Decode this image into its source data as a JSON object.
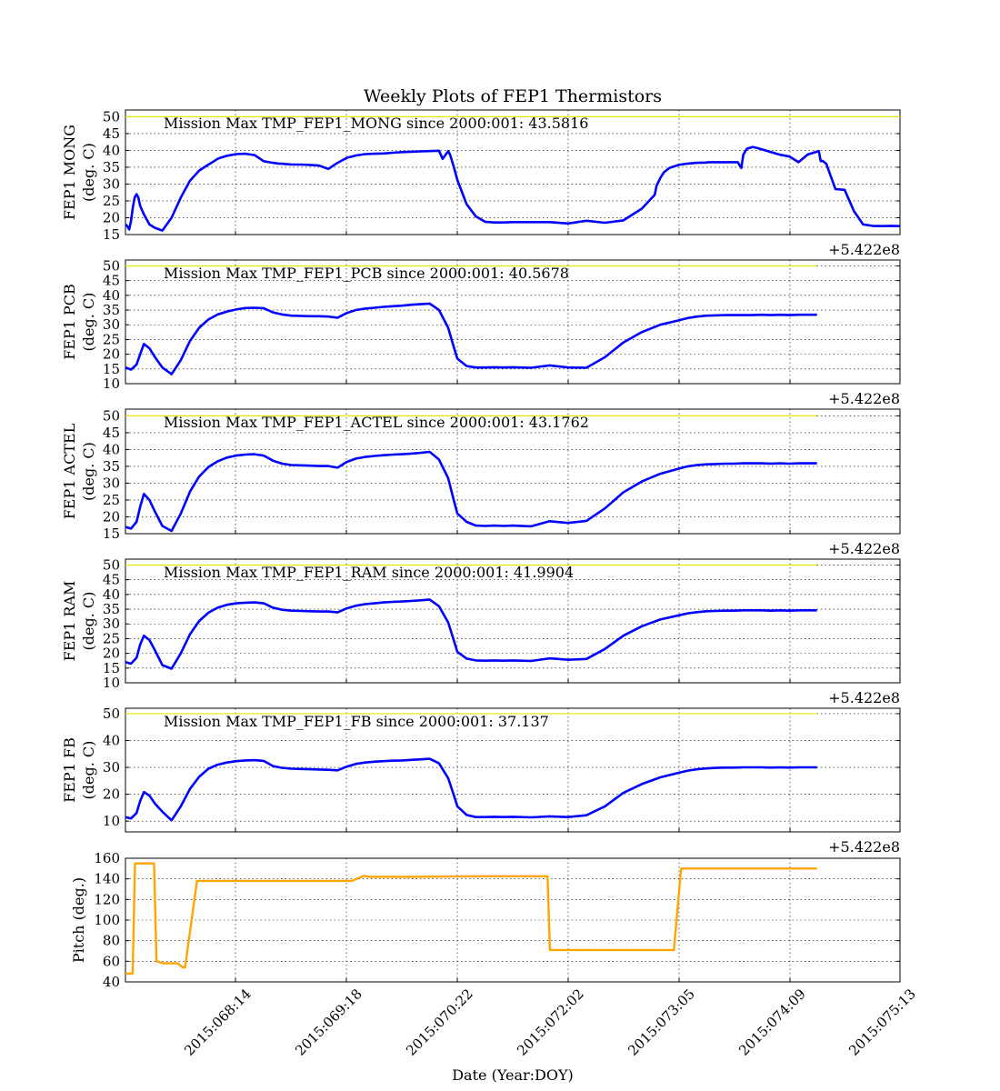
{
  "title": "Weekly Plots of FEP1 Thermistors",
  "xlabel": "Date (Year:DOY)",
  "offset_text": "+5.422e8",
  "colors": {
    "temperature": "#0000ff",
    "pitch": "#ffa500",
    "limit": "#e6e600",
    "axis": "#000000"
  },
  "chart_data": [
    {
      "type": "line",
      "ylabel_lines": [
        "FEP1 MONG",
        "(deg. C)"
      ],
      "annotation": "Mission Max TMP_FEP1_MONG since 2000:001: 43.5816",
      "limit_value": 50,
      "ylim": [
        15,
        52
      ],
      "yticks": [
        15,
        20,
        25,
        30,
        35,
        40,
        45,
        50
      ],
      "x": [
        0,
        1,
        2,
        3,
        4,
        5,
        6,
        7,
        8,
        10,
        13,
        16,
        20,
        25,
        30,
        35,
        40,
        45,
        48,
        50,
        52,
        55,
        60,
        65,
        70,
        75,
        80,
        83,
        86,
        87,
        88,
        90,
        95,
        100,
        105,
        110,
        115,
        120,
        125,
        130,
        135,
        140,
        145,
        150,
        155,
        160,
        165,
        170,
        172,
        175,
        176,
        178,
        180,
        185,
        190,
        195,
        200,
        205,
        210,
        220,
        230,
        240,
        250,
        260,
        270,
        280,
        287,
        288,
        290,
        292,
        295,
        300,
        305,
        310,
        315,
        316,
        317,
        320,
        324,
        325,
        328,
        330,
        332,
        334,
        335,
        337,
        340,
        342,
        345,
        350,
        355,
        360,
        365,
        370,
        376,
        377,
        378,
        380,
        385,
        390,
        395,
        400,
        405,
        410,
        415,
        420
      ],
      "y": [
        18,
        17.5,
        16.5,
        19,
        23,
        26,
        27,
        26,
        23.5,
        21,
        18,
        17,
        16.2,
        20,
        26,
        31,
        34,
        35.8,
        36.8,
        37.5,
        37.9,
        38.4,
        38.9,
        39,
        38.6,
        36.8,
        36.3,
        36.1,
        36.0,
        35.9,
        35.9,
        35.8,
        35.8,
        35.7,
        35.5,
        34.5,
        36.3,
        37.8,
        38.5,
        38.9,
        39,
        39.1,
        39.3,
        39.5,
        39.6,
        39.7,
        39.8,
        39.9,
        37.5,
        39.8,
        38.8,
        35.2,
        31.2,
        24,
        20.4,
        18.8,
        18.6,
        18.6,
        18.7,
        18.7,
        18.7,
        18.3,
        19.1,
        18.5,
        19.2,
        22.7,
        26.8,
        29.5,
        31.8,
        33.5,
        34.8,
        35.7,
        36.1,
        36.3,
        36.4,
        36.5,
        36.5,
        36.5,
        36.5,
        36.5,
        36.5,
        36.5,
        36.5,
        34.8,
        38.7,
        40.5,
        41,
        40.8,
        40.3,
        39.5,
        38.7,
        38.2,
        36.5,
        38.8,
        39.8,
        36.8,
        36.9,
        36,
        28.5,
        28.3,
        22,
        18,
        17.6,
        17.5,
        17.6,
        17.5
      ]
    },
    {
      "type": "line",
      "ylabel_lines": [
        "FEP1 PCB",
        "(deg. C)"
      ],
      "annotation": "Mission Max TMP_FEP1_PCB since 2000:001: 40.5678",
      "limit_value": 50,
      "ylim": [
        10,
        52
      ],
      "yticks": [
        10,
        15,
        20,
        25,
        30,
        35,
        40,
        45,
        50
      ],
      "x": [
        0,
        3,
        6,
        8,
        10,
        13,
        16,
        20,
        25,
        30,
        35,
        40,
        45,
        50,
        55,
        60,
        65,
        70,
        75,
        80,
        85,
        90,
        95,
        100,
        105,
        110,
        115,
        120,
        125,
        130,
        135,
        140,
        145,
        150,
        155,
        160,
        165,
        170,
        175,
        178,
        180,
        185,
        190,
        195,
        200,
        205,
        210,
        220,
        230,
        240,
        250,
        260,
        270,
        280,
        290,
        300,
        305,
        310,
        315,
        320,
        325,
        330,
        335,
        340,
        345,
        350,
        355,
        360,
        365,
        370,
        375
      ],
      "y": [
        15.5,
        14.8,
        16.5,
        20,
        23.5,
        22,
        19,
        15.5,
        13.2,
        18,
        24.5,
        29,
        31.8,
        33.5,
        34.5,
        35.2,
        35.7,
        35.8,
        35.6,
        34.2,
        33.5,
        33.1,
        33,
        32.9,
        32.9,
        32.8,
        32.4,
        34,
        35,
        35.5,
        35.8,
        36.1,
        36.3,
        36.5,
        36.8,
        37,
        37.2,
        35,
        29,
        22.5,
        18.5,
        16,
        15.5,
        15.5,
        15.6,
        15.5,
        15.6,
        15.4,
        16.2,
        15.5,
        15.4,
        19,
        24,
        27.5,
        30,
        31.5,
        32.3,
        32.8,
        33.1,
        33.2,
        33.3,
        33.3,
        33.3,
        33.3,
        33.4,
        33.3,
        33.4,
        33.3,
        33.4,
        33.4,
        33.4
      ]
    },
    {
      "type": "line",
      "ylabel_lines": [
        "FEP1 ACTEL",
        "(deg. C)"
      ],
      "annotation": "Mission Max TMP_FEP1_ACTEL since 2000:001: 43.1762",
      "limit_value": 50,
      "ylim": [
        15,
        52
      ],
      "yticks": [
        15,
        20,
        25,
        30,
        35,
        40,
        45,
        50
      ],
      "x": [
        0,
        3,
        6,
        8,
        10,
        13,
        16,
        20,
        25,
        30,
        35,
        40,
        45,
        50,
        55,
        60,
        65,
        70,
        75,
        80,
        85,
        90,
        95,
        100,
        105,
        110,
        115,
        120,
        125,
        130,
        135,
        140,
        145,
        150,
        155,
        160,
        165,
        170,
        175,
        178,
        180,
        185,
        190,
        195,
        200,
        205,
        210,
        220,
        230,
        240,
        250,
        260,
        270,
        280,
        290,
        300,
        305,
        310,
        315,
        320,
        325,
        330,
        335,
        340,
        345,
        350,
        355,
        360,
        365,
        370,
        375
      ],
      "y": [
        17,
        16.5,
        18.5,
        23,
        26.8,
        25,
        21.5,
        17.3,
        15.8,
        21,
        27.5,
        32,
        34.8,
        36.5,
        37.6,
        38.2,
        38.5,
        38.6,
        38.2,
        36.7,
        35.8,
        35.4,
        35.3,
        35.2,
        35.1,
        35.1,
        34.6,
        36.3,
        37.3,
        37.8,
        38.1,
        38.3,
        38.5,
        38.6,
        38.8,
        39,
        39.3,
        37,
        31.5,
        25,
        21,
        18.5,
        17.4,
        17.3,
        17.4,
        17.3,
        17.4,
        17.2,
        18.7,
        18.2,
        18.8,
        22.5,
        27.3,
        30.5,
        32.8,
        34.3,
        35,
        35.4,
        35.6,
        35.7,
        35.8,
        35.8,
        35.9,
        35.9,
        35.9,
        35.8,
        35.9,
        35.8,
        35.9,
        35.9,
        35.9
      ]
    },
    {
      "type": "line",
      "ylabel_lines": [
        "FEP1 RAM",
        "(deg. C)"
      ],
      "annotation": "Mission Max TMP_FEP1_RAM since 2000:001: 41.9904",
      "limit_value": 50,
      "ylim": [
        10,
        52
      ],
      "yticks": [
        10,
        15,
        20,
        25,
        30,
        35,
        40,
        45,
        50
      ],
      "x": [
        0,
        3,
        6,
        8,
        10,
        13,
        16,
        20,
        25,
        30,
        35,
        40,
        45,
        50,
        55,
        60,
        65,
        70,
        75,
        80,
        85,
        90,
        95,
        100,
        105,
        110,
        115,
        120,
        125,
        130,
        135,
        140,
        145,
        150,
        155,
        160,
        165,
        170,
        175,
        178,
        180,
        185,
        190,
        195,
        200,
        205,
        210,
        220,
        230,
        240,
        250,
        260,
        270,
        280,
        290,
        300,
        305,
        310,
        315,
        320,
        325,
        330,
        335,
        340,
        345,
        350,
        355,
        360,
        365,
        370,
        375
      ],
      "y": [
        17,
        16.5,
        18.5,
        23,
        26,
        24.5,
        21,
        16,
        14.8,
        20,
        26.5,
        31,
        33.8,
        35.5,
        36.5,
        37,
        37.2,
        37.3,
        37,
        35.5,
        34.8,
        34.5,
        34.4,
        34.3,
        34.2,
        34.2,
        33.9,
        35.3,
        36.2,
        36.7,
        37,
        37.3,
        37.5,
        37.6,
        37.8,
        38,
        38.3,
        36,
        30.5,
        24.5,
        20.5,
        18.2,
        17.6,
        17.5,
        17.6,
        17.5,
        17.6,
        17.4,
        18.3,
        17.8,
        18.1,
        21.5,
        26,
        29.2,
        31.5,
        32.9,
        33.6,
        34,
        34.3,
        34.4,
        34.5,
        34.5,
        34.6,
        34.6,
        34.6,
        34.5,
        34.6,
        34.5,
        34.6,
        34.6,
        34.6
      ]
    },
    {
      "type": "line",
      "ylabel_lines": [
        "FEP1 FB",
        "(deg. C)"
      ],
      "annotation": "Mission Max TMP_FEP1_FB since 2000:001: 37.137",
      "limit_value": 50,
      "ylim": [
        6,
        52
      ],
      "yticks": [
        10,
        20,
        30,
        40,
        50
      ],
      "x": [
        0,
        3,
        6,
        8,
        10,
        13,
        16,
        20,
        25,
        30,
        35,
        40,
        45,
        50,
        55,
        60,
        65,
        70,
        75,
        80,
        85,
        90,
        95,
        100,
        105,
        110,
        115,
        120,
        125,
        130,
        135,
        140,
        145,
        150,
        155,
        160,
        165,
        170,
        175,
        178,
        180,
        185,
        190,
        195,
        200,
        205,
        210,
        220,
        230,
        240,
        250,
        260,
        270,
        280,
        290,
        300,
        305,
        310,
        315,
        320,
        325,
        330,
        335,
        340,
        345,
        350,
        355,
        360,
        365,
        370,
        375
      ],
      "y": [
        11.5,
        11,
        13,
        17.5,
        20.8,
        19.5,
        16.5,
        13.5,
        10.3,
        15.5,
        22,
        26.5,
        29.5,
        31,
        31.8,
        32.3,
        32.6,
        32.7,
        32.4,
        30.5,
        29.8,
        29.5,
        29.4,
        29.3,
        29.2,
        29.1,
        28.9,
        30.3,
        31.3,
        31.8,
        32.1,
        32.3,
        32.5,
        32.6,
        32.8,
        33,
        33.2,
        31.5,
        26,
        19.8,
        15.5,
        12.3,
        11.5,
        11.5,
        11.6,
        11.5,
        11.6,
        11.4,
        11.8,
        11.5,
        12.2,
        15.5,
        20.5,
        23.8,
        26.3,
        28,
        28.8,
        29.3,
        29.6,
        29.8,
        29.9,
        29.9,
        30,
        30,
        30,
        29.9,
        30,
        29.9,
        30,
        30,
        30
      ]
    },
    {
      "type": "line",
      "ylabel_lines": [
        "Pitch (deg.)"
      ],
      "annotation": "",
      "limit_value": null,
      "ylim": [
        40,
        160
      ],
      "yticks": [
        40,
        60,
        80,
        100,
        120,
        140,
        160
      ],
      "x": [
        0,
        3,
        4,
        6,
        7,
        12,
        13,
        16,
        18,
        20,
        22,
        24,
        25,
        30,
        60,
        95,
        100,
        102,
        105,
        110,
        120,
        150,
        165,
        175,
        177,
        178,
        180,
        190,
        200,
        215,
        230,
        233,
        235,
        237,
        240,
        250,
        260,
        270,
        280,
        290
      ],
      "y": [
        48,
        48,
        155,
        155,
        155,
        155,
        60,
        58,
        58,
        58,
        58,
        54,
        54,
        138,
        138,
        138,
        143,
        142,
        142,
        142,
        142,
        142.5,
        142.5,
        142.5,
        142.5,
        71,
        71,
        71,
        71,
        71,
        71,
        150,
        150,
        150,
        150,
        150,
        150,
        150,
        150,
        150
      ]
    }
  ],
  "x_ticks": [
    "2015:068:14",
    "2015:069:18",
    "2015:070:22",
    "2015:072:02",
    "2015:073:05",
    "2015:074:09",
    "2015:075:13"
  ]
}
